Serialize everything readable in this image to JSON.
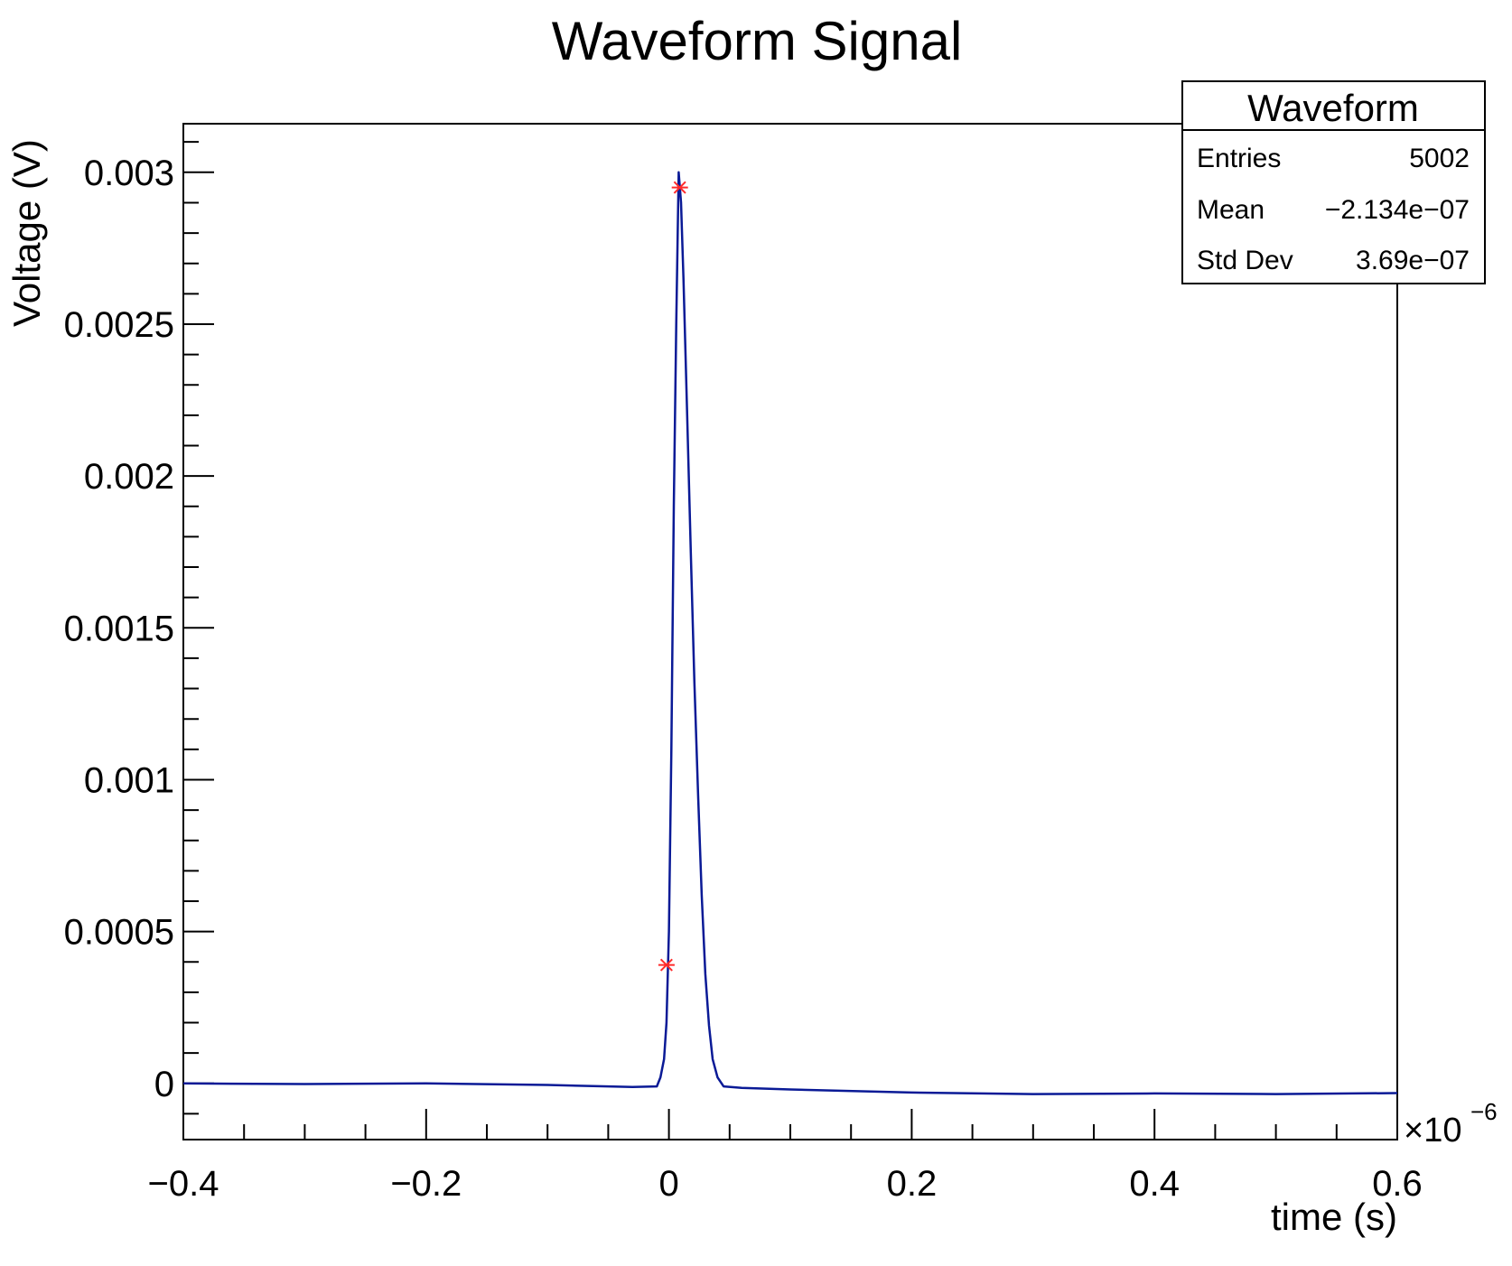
{
  "chart_data": {
    "type": "line",
    "title": "Waveform Signal",
    "xlabel": "time (s)",
    "ylabel": "Voltage (V)",
    "x_multiplier_label": "×10",
    "x_multiplier_exponent": "−6",
    "xlim": [
      -0.4,
      0.6
    ],
    "ylim": [
      -0.000185,
      0.00316
    ],
    "x_ticks": [
      -0.4,
      -0.2,
      0,
      0.2,
      0.4,
      0.6
    ],
    "x_tick_labels": [
      "−0.4",
      "−0.2",
      "0",
      "0.2",
      "0.4",
      "0.6"
    ],
    "y_ticks": [
      0,
      0.0005,
      0.001,
      0.0015,
      0.002,
      0.0025,
      0.003
    ],
    "y_tick_labels": [
      "0",
      "0.0005",
      "0.001",
      "0.0015",
      "0.002",
      "0.0025",
      "0.003"
    ],
    "grid": false,
    "series": [
      {
        "color": "#0a1a96",
        "x": [
          -0.4,
          -0.3,
          -0.2,
          -0.1,
          -0.03,
          -0.01,
          -0.007,
          -0.004,
          -0.002,
          0,
          0.002,
          0.004,
          0.006,
          0.008,
          0.01,
          0.012,
          0.015,
          0.018,
          0.021,
          0.024,
          0.027,
          0.03,
          0.033,
          0.036,
          0.04,
          0.045,
          0.06,
          0.1,
          0.2,
          0.3,
          0.4,
          0.5,
          0.6
        ],
        "y": [
          0.0,
          -2e-06,
          0.0,
          -5e-06,
          -1.2e-05,
          -1e-05,
          2e-05,
          8e-05,
          0.0002,
          0.0005,
          0.0011,
          0.0019,
          0.0025,
          0.003,
          0.0029,
          0.00265,
          0.0022,
          0.00175,
          0.00132,
          0.00095,
          0.00062,
          0.00036,
          0.00019,
          8e-05,
          2e-05,
          -1e-05,
          -1.5e-05,
          -2e-05,
          -3e-05,
          -3.5e-05,
          -3.3e-05,
          -3.5e-05,
          -3.2e-05
        ]
      }
    ],
    "markers": [
      {
        "x": -0.002,
        "y": 0.00039,
        "color": "#ff2a2a",
        "symbol": "asterisk"
      },
      {
        "x": 0.009,
        "y": 0.00295,
        "color": "#ff2a2a",
        "symbol": "asterisk"
      }
    ],
    "stats_box": {
      "title": "Waveform",
      "rows": [
        {
          "label": "Entries",
          "value": "5002"
        },
        {
          "label": "Mean",
          "value": "−2.134e−07"
        },
        {
          "label": "Std Dev",
          "value": "3.69e−07"
        }
      ],
      "placement": "top-right"
    }
  }
}
